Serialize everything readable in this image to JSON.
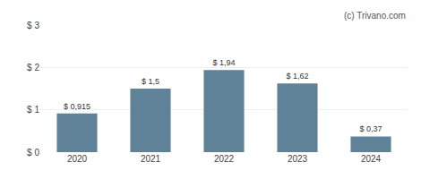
{
  "chart_data": {
    "type": "bar",
    "categories": [
      "2020",
      "2021",
      "2022",
      "2023",
      "2024"
    ],
    "values": [
      0.915,
      1.5,
      1.94,
      1.62,
      0.37
    ],
    "data_labels": true,
    "value_labels": [
      "$ 0,915",
      "$ 1,5",
      "$ 1,94",
      "$ 1,62",
      "$ 0,37"
    ],
    "color": "#5f8298",
    "ylim": [
      0,
      3.0
    ],
    "yticks": [
      {
        "value": 0,
        "label": "$ 0"
      },
      {
        "value": 1,
        "label": "$ 1"
      },
      {
        "value": 2,
        "label": "$ 2"
      },
      {
        "value": 3,
        "label": "$ 3"
      }
    ],
    "grid": true,
    "annotations": [
      "(c) Trivano.com"
    ]
  }
}
